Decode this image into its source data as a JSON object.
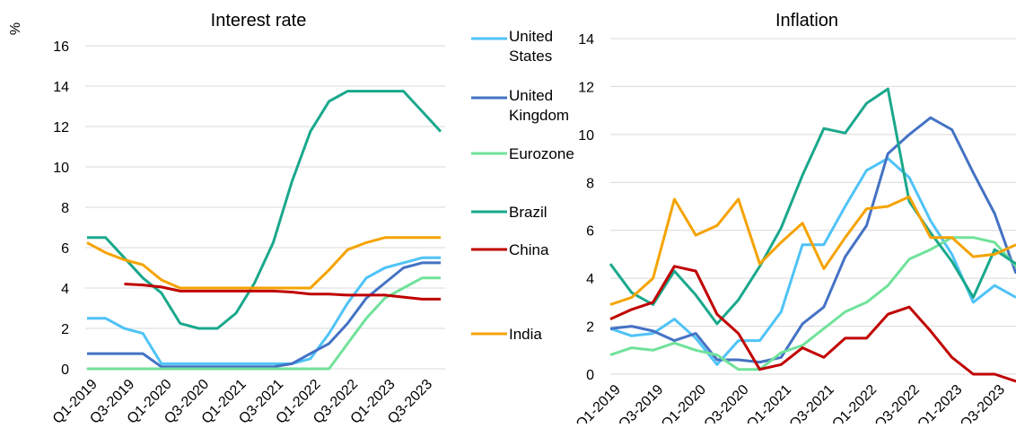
{
  "chart_data": [
    {
      "type": "line",
      "title": "Interest rate",
      "ylabel": "%",
      "ylim": [
        0,
        16
      ],
      "yticks": [
        0,
        2,
        4,
        6,
        8,
        10,
        12,
        14,
        16
      ],
      "grid": true,
      "legend": "right",
      "x": [
        "Q1-2019",
        "Q2-2019",
        "Q3-2019",
        "Q4-2019",
        "Q1-2020",
        "Q2-2020",
        "Q3-2020",
        "Q4-2020",
        "Q1-2021",
        "Q2-2021",
        "Q3-2021",
        "Q4-2021",
        "Q1-2022",
        "Q2-2022",
        "Q3-2022",
        "Q4-2022",
        "Q1-2023",
        "Q2-2023",
        "Q3-2023",
        "Q4-2023"
      ],
      "xtick_labels": [
        "Q1-2019",
        "Q3-2019",
        "Q1-2020",
        "Q3-2020",
        "Q1-2021",
        "Q3-2021",
        "Q1-2022",
        "Q3-2022",
        "Q1-2023",
        "Q3-2023"
      ],
      "series": [
        {
          "name": "United States",
          "color": "#4fc3f7",
          "values": [
            2.5,
            2.5,
            2.0,
            1.75,
            0.25,
            0.25,
            0.25,
            0.25,
            0.25,
            0.25,
            0.25,
            0.25,
            0.5,
            1.75,
            3.25,
            4.5,
            5.0,
            5.25,
            5.5,
            5.5
          ]
        },
        {
          "name": "United Kingdom",
          "color": "#4472c4",
          "values": [
            0.75,
            0.75,
            0.75,
            0.75,
            0.1,
            0.1,
            0.1,
            0.1,
            0.1,
            0.1,
            0.1,
            0.25,
            0.75,
            1.25,
            2.25,
            3.5,
            4.25,
            5.0,
            5.25,
            5.25
          ]
        },
        {
          "name": "Eurozone",
          "color": "#70e29a",
          "values": [
            0,
            0,
            0,
            0,
            0,
            0,
            0,
            0,
            0,
            0,
            0,
            0,
            0,
            0,
            1.25,
            2.5,
            3.5,
            4.0,
            4.5,
            4.5
          ]
        },
        {
          "name": "Brazil",
          "color": "#1aa88c",
          "values": [
            6.5,
            6.5,
            5.5,
            4.5,
            3.75,
            2.25,
            2.0,
            2.0,
            2.75,
            4.25,
            6.25,
            9.25,
            11.75,
            13.25,
            13.75,
            13.75,
            13.75,
            13.75,
            12.75,
            11.75
          ]
        },
        {
          "name": "China",
          "color": "#c00000",
          "values": [
            null,
            null,
            4.2,
            4.15,
            4.05,
            3.85,
            3.85,
            3.85,
            3.85,
            3.85,
            3.85,
            3.8,
            3.7,
            3.7,
            3.65,
            3.65,
            3.65,
            3.55,
            3.45,
            3.45
          ]
        },
        {
          "name": "India",
          "color": "#f5a300",
          "values": [
            6.25,
            5.75,
            5.4,
            5.15,
            4.4,
            4.0,
            4.0,
            4.0,
            4.0,
            4.0,
            4.0,
            4.0,
            4.0,
            4.9,
            5.9,
            6.25,
            6.5,
            6.5,
            6.5,
            6.5
          ]
        }
      ]
    },
    {
      "type": "line",
      "title": "Inflation",
      "ylim": [
        0,
        14
      ],
      "yticks": [
        0,
        2,
        4,
        6,
        8,
        10,
        12,
        14
      ],
      "grid": true,
      "x": [
        "Q1-2019",
        "Q2-2019",
        "Q3-2019",
        "Q4-2019",
        "Q1-2020",
        "Q2-2020",
        "Q3-2020",
        "Q4-2020",
        "Q1-2021",
        "Q2-2021",
        "Q3-2021",
        "Q4-2021",
        "Q1-2022",
        "Q2-2022",
        "Q3-2022",
        "Q4-2022",
        "Q1-2023",
        "Q2-2023",
        "Q3-2023",
        "Q4-2023",
        "Q1-2024"
      ],
      "xtick_labels": [
        "Q1-2019",
        "Q3-2019",
        "Q1-2020",
        "Q3-2020",
        "Q1-2021",
        "Q3-2021",
        "Q1-2022",
        "Q3-2022",
        "Q1-2023",
        "Q3-2023"
      ],
      "series": [
        {
          "name": "United States",
          "color": "#4fc3f7",
          "values": [
            1.9,
            1.6,
            1.7,
            2.3,
            1.5,
            0.4,
            1.4,
            1.4,
            2.6,
            5.4,
            5.4,
            7.0,
            8.5,
            9.0,
            8.2,
            6.4,
            5.0,
            3.0,
            3.7,
            3.2,
            null
          ]
        },
        {
          "name": "United Kingdom",
          "color": "#4472c4",
          "values": [
            1.9,
            2.0,
            1.8,
            1.4,
            1.7,
            0.6,
            0.6,
            0.5,
            0.7,
            2.1,
            2.8,
            4.9,
            6.2,
            9.2,
            10.0,
            10.7,
            10.2,
            8.4,
            6.7,
            4.2,
            null
          ]
        },
        {
          "name": "Eurozone",
          "color": "#70e29a",
          "values": [
            0.8,
            1.1,
            1.0,
            1.3,
            1.0,
            0.8,
            0.2,
            0.2,
            0.9,
            1.2,
            1.9,
            2.6,
            3.0,
            3.7,
            4.8,
            5.2,
            5.7,
            5.7,
            5.5,
            4.5,
            3.6
          ]
        },
        {
          "name": "Brazil",
          "color": "#1aa88c",
          "values": [
            4.6,
            3.4,
            2.9,
            4.3,
            3.3,
            2.1,
            3.1,
            4.5,
            6.1,
            8.3,
            10.25,
            10.06,
            11.3,
            11.9,
            7.2,
            5.9,
            4.7,
            3.2,
            5.2,
            4.6,
            null
          ]
        },
        {
          "name": "China",
          "color": "#c00000",
          "values": [
            2.3,
            2.7,
            3.0,
            4.5,
            4.3,
            2.5,
            1.7,
            0.2,
            0.4,
            1.1,
            0.7,
            1.5,
            1.5,
            2.5,
            2.8,
            1.8,
            0.7,
            0.0,
            0.0,
            -0.3,
            null
          ]
        },
        {
          "name": "India",
          "color": "#f5a300",
          "values": [
            2.9,
            3.2,
            4.0,
            7.3,
            5.8,
            6.2,
            7.3,
            4.6,
            5.5,
            6.3,
            4.4,
            5.7,
            6.9,
            7.0,
            7.4,
            5.7,
            5.7,
            4.9,
            5.0,
            5.4,
            null
          ]
        }
      ]
    }
  ]
}
